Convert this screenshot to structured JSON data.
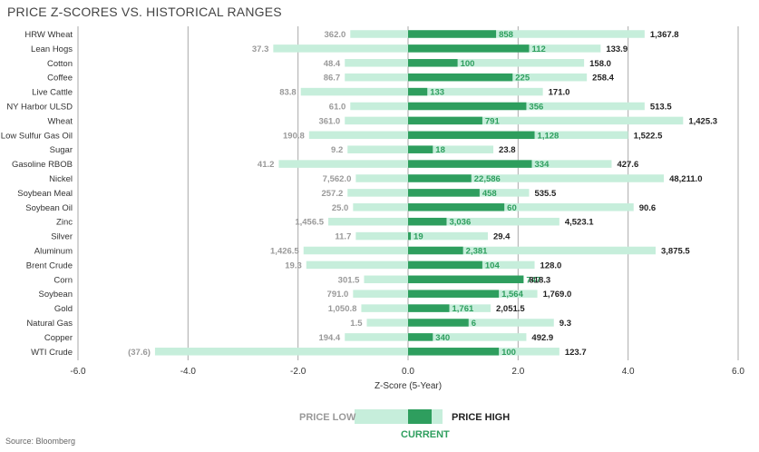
{
  "title": "PRICE Z-SCORES VS. HISTORICAL RANGES",
  "source": "Source: Bloomberg",
  "legend": {
    "low": "PRICE LOW",
    "high": "PRICE HIGH",
    "current": "CURRENT"
  },
  "colors": {
    "range": "#c6eedb",
    "current": "#2e9e5e",
    "grid": "#aaaaaa",
    "low_text": "#999999",
    "high_text": "#222222",
    "current_text": "#2e9e5e"
  },
  "chart_data": {
    "type": "bar",
    "xlabel": "Z-Score (5-Year)",
    "xlim": [
      -6.0,
      6.0
    ],
    "xticks": [
      "-6.0",
      "-4.0",
      "-2.0",
      "0.0",
      "2.0",
      "4.0",
      "6.0"
    ],
    "grid": true,
    "rows": [
      {
        "name": "HRW Wheat",
        "low_z": -1.05,
        "high_z": 4.3,
        "current_z": 1.6,
        "low": "362.0",
        "current": "858",
        "high": "1,367.8"
      },
      {
        "name": "Lean Hogs",
        "low_z": -2.45,
        "high_z": 3.5,
        "current_z": 2.2,
        "low": "37.3",
        "current": "112",
        "high": "133.9"
      },
      {
        "name": "Cotton",
        "low_z": -1.15,
        "high_z": 3.2,
        "current_z": 0.9,
        "low": "48.4",
        "current": "100",
        "high": "158.0"
      },
      {
        "name": "Coffee",
        "low_z": -1.15,
        "high_z": 3.25,
        "current_z": 1.9,
        "low": "86.7",
        "current": "225",
        "high": "258.4"
      },
      {
        "name": "Live Cattle",
        "low_z": -1.95,
        "high_z": 2.45,
        "current_z": 0.35,
        "low": "83.8",
        "current": "133",
        "high": "171.0"
      },
      {
        "name": "NY Harbor ULSD",
        "low_z": -1.05,
        "high_z": 4.3,
        "current_z": 2.15,
        "low": "61.0",
        "current": "356",
        "high": "513.5"
      },
      {
        "name": "Wheat",
        "low_z": -1.15,
        "high_z": 5.0,
        "current_z": 1.35,
        "low": "361.0",
        "current": "791",
        "high": "1,425.3"
      },
      {
        "name": "Low Sulfur Gas Oil",
        "low_z": -1.8,
        "high_z": 4.0,
        "current_z": 2.3,
        "low": "190.8",
        "current": "1,128",
        "high": "1,522.5"
      },
      {
        "name": "Sugar",
        "low_z": -1.1,
        "high_z": 1.55,
        "current_z": 0.45,
        "low": "9.2",
        "current": "18",
        "high": "23.8"
      },
      {
        "name": "Gasoline RBOB",
        "low_z": -2.35,
        "high_z": 3.7,
        "current_z": 2.25,
        "low": "41.2",
        "current": "334",
        "high": "427.6"
      },
      {
        "name": "Nickel",
        "low_z": -0.95,
        "high_z": 4.65,
        "current_z": 1.15,
        "low": "7,562.0",
        "current": "22,586",
        "high": "48,211.0"
      },
      {
        "name": "Soybean Meal",
        "low_z": -1.1,
        "high_z": 2.2,
        "current_z": 1.3,
        "low": "257.2",
        "current": "458",
        "high": "535.5"
      },
      {
        "name": "Soybean Oil",
        "low_z": -1.0,
        "high_z": 4.1,
        "current_z": 1.75,
        "low": "25.0",
        "current": "60",
        "high": "90.6"
      },
      {
        "name": "Zinc",
        "low_z": -1.45,
        "high_z": 2.75,
        "current_z": 0.7,
        "low": "1,456.5",
        "current": "3,036",
        "high": "4,523.1"
      },
      {
        "name": "Silver",
        "low_z": -0.95,
        "high_z": 1.45,
        "current_z": 0.05,
        "low": "11.7",
        "current": "19",
        "high": "29.4"
      },
      {
        "name": "Aluminum",
        "low_z": -1.9,
        "high_z": 4.5,
        "current_z": 1.0,
        "low": "1,426.5",
        "current": "2,381",
        "high": "3,875.5"
      },
      {
        "name": "Brent Crude",
        "low_z": -1.85,
        "high_z": 2.3,
        "current_z": 1.35,
        "low": "19.3",
        "current": "104",
        "high": "128.0"
      },
      {
        "name": "Corn",
        "low_z": -0.8,
        "high_z": 2.1,
        "current_z": 2.1,
        "low": "301.5",
        "current": "747",
        "high": "818.3"
      },
      {
        "name": "Soybean",
        "low_z": -1.0,
        "high_z": 2.35,
        "current_z": 1.65,
        "low": "791.0",
        "current": "1,564",
        "high": "1,769.0"
      },
      {
        "name": "Gold",
        "low_z": -0.85,
        "high_z": 1.5,
        "current_z": 0.75,
        "low": "1,050.8",
        "current": "1,761",
        "high": "2,051.5"
      },
      {
        "name": "Natural Gas",
        "low_z": -0.75,
        "high_z": 2.65,
        "current_z": 1.1,
        "low": "1.5",
        "current": "6",
        "high": "9.3"
      },
      {
        "name": "Copper",
        "low_z": -1.15,
        "high_z": 2.15,
        "current_z": 0.45,
        "low": "194.4",
        "current": "340",
        "high": "492.9"
      },
      {
        "name": "WTI Crude",
        "low_z": -4.6,
        "high_z": 2.75,
        "current_z": 1.65,
        "low": "(37.6)",
        "current": "100",
        "high": "123.7"
      }
    ]
  }
}
